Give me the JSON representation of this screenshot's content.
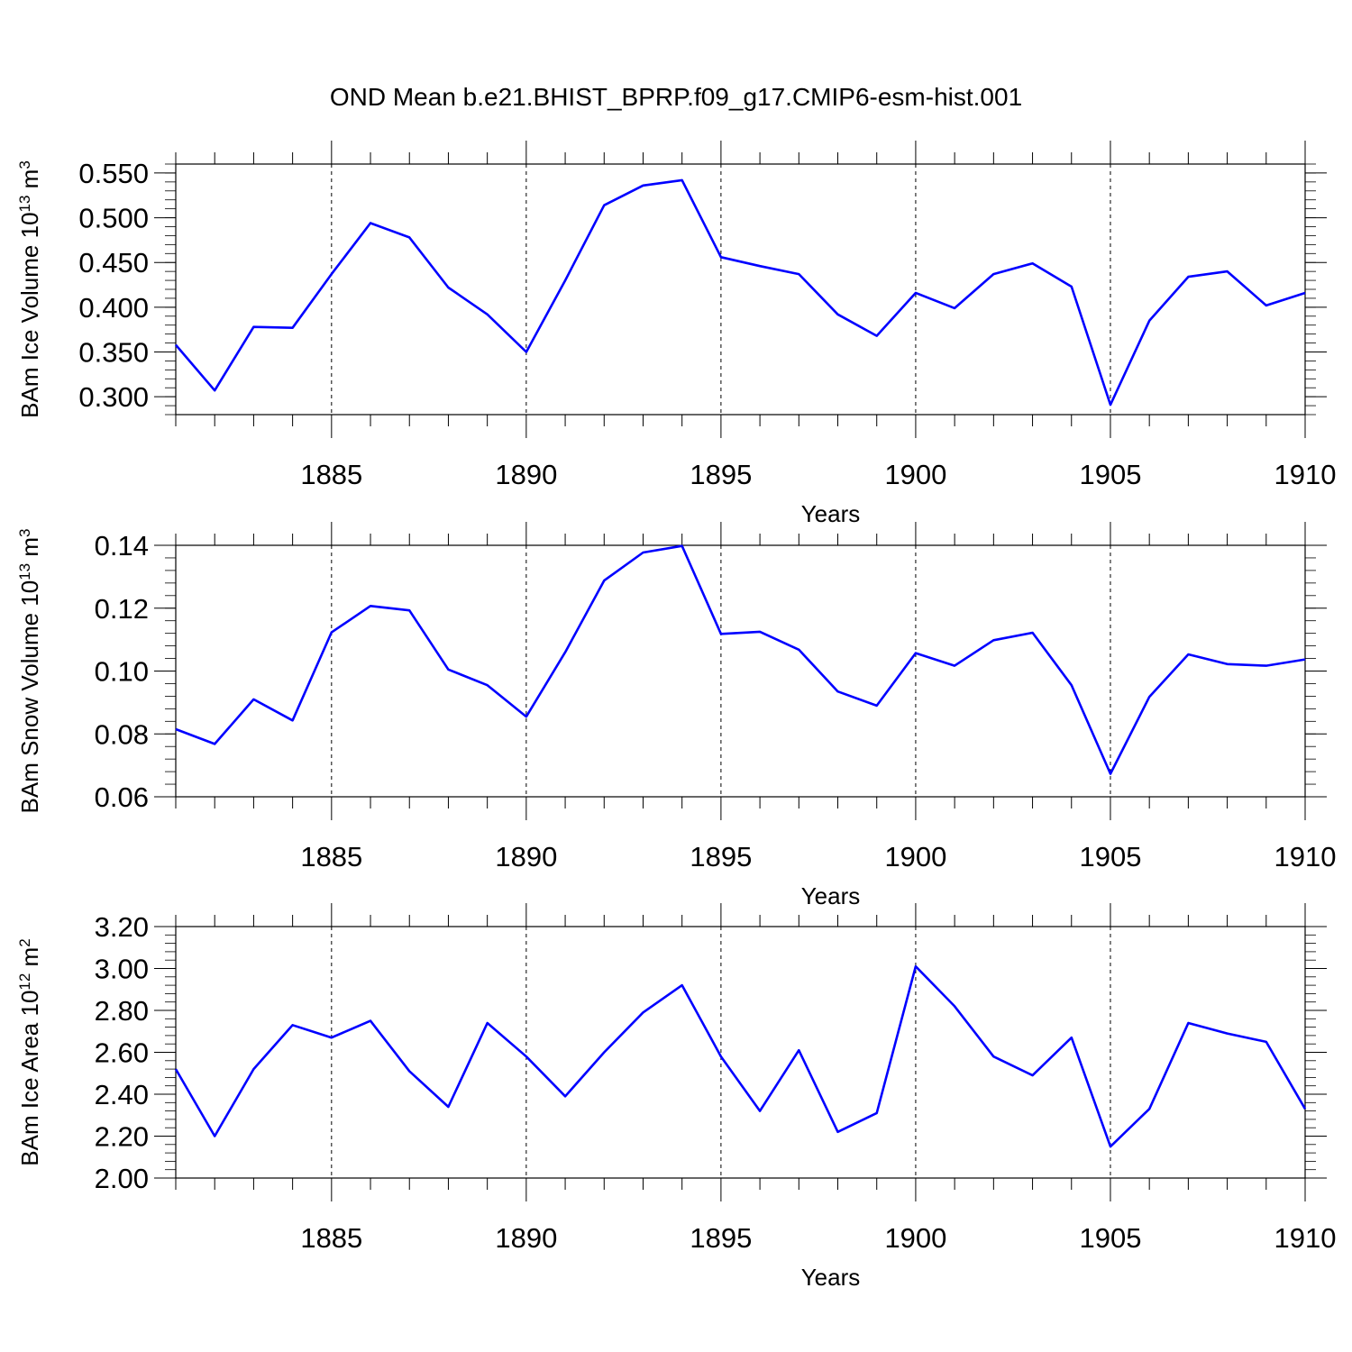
{
  "title": "OND Mean b.e21.BHIST_BPRP.f09_g17.CMIP6-esm-hist.001",
  "line_color": "#0000ff",
  "chart_data": [
    {
      "type": "line",
      "ylabel": "BAm Ice Volume",
      "ylabel_unit_base": "10",
      "ylabel_unit_exp": "13",
      "ylabel_unit_m": "m",
      "ylabel_unit_m_exp": "3",
      "xlabel": "Years",
      "xlim": [
        1881,
        1910
      ],
      "ylim": [
        0.28,
        0.56
      ],
      "y_ticks": [
        0.3,
        0.35,
        0.4,
        0.45,
        0.5,
        0.55
      ],
      "y_tick_labels": [
        "0.300",
        "0.350",
        "0.400",
        "0.450",
        "0.500",
        "0.550"
      ],
      "x_ticks": [
        1885,
        1890,
        1895,
        1900,
        1905,
        1910
      ],
      "x_tick_labels": [
        "1885",
        "1890",
        "1895",
        "1900",
        "1905",
        "1910"
      ],
      "x": [
        1881,
        1882,
        1883,
        1884,
        1885,
        1886,
        1887,
        1888,
        1889,
        1890,
        1891,
        1892,
        1893,
        1894,
        1895,
        1896,
        1897,
        1898,
        1899,
        1900,
        1901,
        1902,
        1903,
        1904,
        1905,
        1906,
        1907,
        1908,
        1909,
        1910
      ],
      "values": [
        0.358,
        0.307,
        0.378,
        0.377,
        0.437,
        0.494,
        0.478,
        0.422,
        0.392,
        0.35,
        0.43,
        0.514,
        0.536,
        0.542,
        0.456,
        0.446,
        0.437,
        0.392,
        0.368,
        0.416,
        0.399,
        0.437,
        0.449,
        0.423,
        0.291,
        0.385,
        0.434,
        0.44,
        0.402,
        0.416
      ]
    },
    {
      "type": "line",
      "ylabel": "BAm Snow Volume",
      "ylabel_unit_base": "10",
      "ylabel_unit_exp": "13",
      "ylabel_unit_m": "m",
      "ylabel_unit_m_exp": "3",
      "xlabel": "Years",
      "xlim": [
        1881,
        1910
      ],
      "ylim": [
        0.06,
        0.14
      ],
      "y_ticks": [
        0.06,
        0.08,
        0.1,
        0.12,
        0.14
      ],
      "y_tick_labels": [
        "0.06",
        "0.08",
        "0.10",
        "0.12",
        "0.14"
      ],
      "x_ticks": [
        1885,
        1890,
        1895,
        1900,
        1905,
        1910
      ],
      "x_tick_labels": [
        "1885",
        "1890",
        "1895",
        "1900",
        "1905",
        "1910"
      ],
      "x": [
        1881,
        1882,
        1883,
        1884,
        1885,
        1886,
        1887,
        1888,
        1889,
        1890,
        1891,
        1892,
        1893,
        1894,
        1895,
        1896,
        1897,
        1898,
        1899,
        1900,
        1901,
        1902,
        1903,
        1904,
        1905,
        1906,
        1907,
        1908,
        1909,
        1910
      ],
      "values": [
        0.0815,
        0.0768,
        0.091,
        0.0843,
        0.1123,
        0.1207,
        0.1193,
        0.1005,
        0.0955,
        0.0855,
        0.106,
        0.1288,
        0.1377,
        0.1398,
        0.1118,
        0.1125,
        0.1068,
        0.0935,
        0.089,
        0.1057,
        0.1017,
        0.1098,
        0.1122,
        0.0955,
        0.0673,
        0.0918,
        0.1053,
        0.1022,
        0.1017,
        0.1037
      ]
    },
    {
      "type": "line",
      "ylabel": "BAm Ice Area",
      "ylabel_unit_base": "10",
      "ylabel_unit_exp": "12",
      "ylabel_unit_m": "m",
      "ylabel_unit_m_exp": "2",
      "xlabel": "Years",
      "xlim": [
        1881,
        1910
      ],
      "ylim": [
        2.0,
        3.2
      ],
      "y_ticks": [
        2.0,
        2.2,
        2.4,
        2.6,
        2.8,
        3.0,
        3.2
      ],
      "y_tick_labels": [
        "2.00",
        "2.20",
        "2.40",
        "2.60",
        "2.80",
        "3.00",
        "3.20"
      ],
      "x_ticks": [
        1885,
        1890,
        1895,
        1900,
        1905,
        1910
      ],
      "x_tick_labels": [
        "1885",
        "1890",
        "1895",
        "1900",
        "1905",
        "1910"
      ],
      "x": [
        1881,
        1882,
        1883,
        1884,
        1885,
        1886,
        1887,
        1888,
        1889,
        1890,
        1891,
        1892,
        1893,
        1894,
        1895,
        1896,
        1897,
        1898,
        1899,
        1900,
        1901,
        1902,
        1903,
        1904,
        1905,
        1906,
        1907,
        1908,
        1909,
        1910
      ],
      "values": [
        2.52,
        2.2,
        2.52,
        2.73,
        2.67,
        2.75,
        2.51,
        2.34,
        2.74,
        2.58,
        2.39,
        2.6,
        2.79,
        2.92,
        2.58,
        2.32,
        2.61,
        2.22,
        2.31,
        3.01,
        2.82,
        2.58,
        2.49,
        2.67,
        2.15,
        2.33,
        2.74,
        2.69,
        2.65,
        2.33
      ]
    }
  ]
}
